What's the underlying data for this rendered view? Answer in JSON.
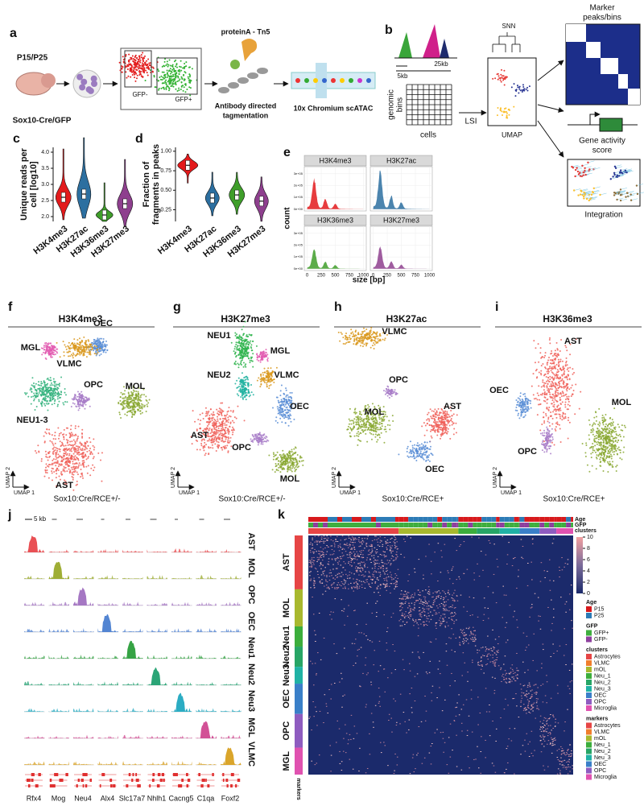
{
  "a": {
    "label": "a",
    "age": "P15/P25",
    "mouse": "Sox10-Cre/GFP",
    "gate_neg": "GFP-",
    "gate_pos": "GFP+",
    "enzyme": "proteinA - Tn5",
    "step_line1": "Antibody directed",
    "step_line2": "tagmentation",
    "platform": "10x Chromium scATAC"
  },
  "b": {
    "label": "b",
    "bin_small": "5kb",
    "bin_large": "25kb",
    "matrix_rows": [
      "genomic",
      "bins"
    ],
    "matrix_cols": "cells",
    "method": "LSI",
    "graph": "SNN",
    "embedding": "UMAP",
    "output1": [
      "Marker",
      "peaks/bins"
    ],
    "output2": [
      "Gene activity",
      "score"
    ],
    "output3": "Integration"
  },
  "c": {
    "label": "c",
    "ylabel": [
      "Unique reads per",
      "cell [log10]"
    ],
    "categories": [
      "H3K4me3",
      "H3K27ac",
      "H3K36me3",
      "H3K27me3"
    ],
    "colors": [
      "#e31a1c",
      "#2c6fa0",
      "#3f9e2a",
      "#8e3f8e"
    ],
    "medians": [
      2.6,
      2.7,
      2.05,
      2.4
    ],
    "ylim": [
      1.85,
      4.15
    ],
    "yticks": [
      {
        "value": 2,
        "label": "2.0"
      },
      2.5,
      {
        "value": 3,
        "label": "3.0"
      },
      3.5,
      {
        "value": 4,
        "label": "4.0"
      }
    ]
  },
  "d": {
    "label": "d",
    "ylabel": [
      "Fraction of",
      "fragments in peaks"
    ],
    "categories": [
      "H3K4me3",
      "H3K27ac",
      "H3K36me3",
      "H3K27me3"
    ],
    "colors": [
      "#e31a1c",
      "#2c6fa0",
      "#3f9e2a",
      "#8e3f8e"
    ],
    "medians": [
      0.82,
      0.4,
      0.44,
      0.36
    ],
    "ylim": [
      0.1,
      1.05
    ],
    "yticks": [
      0.25,
      {
        "value": 0.5,
        "label": "0.50"
      },
      0.75,
      {
        "value": 1,
        "label": "1.00"
      }
    ]
  },
  "e": {
    "label": "e",
    "facets": [
      "H3K4me3",
      "H3K27ac",
      "H3K36me3",
      "H3K27me3"
    ],
    "colors": [
      "#e31a1c",
      "#2c6fa0",
      "#3f9e2a",
      "#8e3f8e"
    ],
    "xlabel": "size [bp]",
    "ylabel": "count",
    "xlim": [
      -50,
      1050
    ],
    "xticks": [
      0,
      250,
      500,
      750,
      1000
    ],
    "ylim": [
      -15000,
      360000
    ],
    "yticks": [
      {
        "value": 0,
        "label": "0e+00"
      },
      {
        "value": 100000,
        "label": "1e+05"
      },
      {
        "value": 200000,
        "label": "2e+05"
      },
      {
        "value": 300000,
        "label": "3e+05"
      }
    ]
  },
  "umap_axes": [
    "UMAP 1",
    "UMAP 2"
  ],
  "umaps": [
    {
      "label": "f",
      "title": "H3K4me3",
      "genotype": "Sox10:Cre/RCE+/-",
      "clusters": [
        {
          "name": "MGL",
          "color": "#e25ab0"
        },
        {
          "name": "OEC",
          "color": "#5b8ed6"
        },
        {
          "name": "VLMC",
          "color": "#d9981c"
        },
        {
          "name": "OPC",
          "color": "#a87cc8"
        },
        {
          "name": "MOL",
          "color": "#8aa832"
        },
        {
          "name": "NEU1-3",
          "color": "#2fb07a"
        },
        {
          "name": "AST",
          "color": "#f0625a"
        }
      ]
    },
    {
      "label": "g",
      "title": "H3K27me3",
      "genotype": "Sox10:Cre/RCE+/-",
      "clusters": [
        {
          "name": "NEU1",
          "color": "#2bb34a"
        },
        {
          "name": "MGL",
          "color": "#e25ab0"
        },
        {
          "name": "NEU2",
          "color": "#20b2a0"
        },
        {
          "name": "VLMC",
          "color": "#d9981c"
        },
        {
          "name": "OEC",
          "color": "#5b8ed6"
        },
        {
          "name": "AST",
          "color": "#f0625a"
        },
        {
          "name": "OPC",
          "color": "#a87cc8"
        },
        {
          "name": "MOL",
          "color": "#8aa832"
        }
      ]
    },
    {
      "label": "h",
      "title": "H3K27ac",
      "genotype": "Sox10:Cre/RCE+",
      "clusters": [
        {
          "name": "VLMC",
          "color": "#d9981c"
        },
        {
          "name": "OPC",
          "color": "#a87cc8"
        },
        {
          "name": "MOL",
          "color": "#8aa832"
        },
        {
          "name": "AST",
          "color": "#f0625a"
        },
        {
          "name": "OEC",
          "color": "#5b8ed6"
        }
      ]
    },
    {
      "label": "i",
      "title": "H3K36me3",
      "genotype": "Sox10:Cre/RCE+",
      "clusters": [
        {
          "name": "AST",
          "color": "#f0625a"
        },
        {
          "name": "OEC",
          "color": "#5b8ed6"
        },
        {
          "name": "OPC",
          "color": "#a87cc8"
        },
        {
          "name": "MOL",
          "color": "#8aa832"
        }
      ]
    }
  ],
  "j": {
    "label": "j",
    "scale": "5 kb",
    "rows": [
      "AST",
      "MOL",
      "OPC",
      "OEC",
      "Neu1",
      "Neu2",
      "Neu3",
      "MGL",
      "VLMC"
    ],
    "colors": [
      "#e8474b",
      "#9aaa2a",
      "#a070c0",
      "#4a7ed0",
      "#2a9e3a",
      "#20a070",
      "#20a8c0",
      "#d04890",
      "#d8a020"
    ],
    "genes": [
      "Rfx4",
      "Mog",
      "Neu4",
      "Alx4",
      "Slc17a7",
      "Nhlh1",
      "Cacng5",
      "C1qa",
      "Foxf2"
    ]
  },
  "k": {
    "label": "k",
    "rows": [
      "AST",
      "MOL",
      "Neu1",
      "Neu2",
      "Neu3",
      "OEC",
      "OPC",
      "MGL"
    ],
    "annotations": [
      "Age",
      "GFP",
      "clusters"
    ],
    "markers_label": "markers",
    "colorbar": {
      "ylim": [
        0,
        10
      ],
      "ticks": [
        0,
        2,
        4,
        6,
        8,
        10
      ]
    },
    "legend": [
      {
        "title": "Age",
        "items": [
          {
            "name": "P15",
            "color": "#d7191c"
          },
          {
            "name": "P25",
            "color": "#2c7bb6"
          }
        ]
      },
      {
        "title": "GFP",
        "items": [
          {
            "name": "GFP+",
            "color": "#3fae3f"
          },
          {
            "name": "GFP-",
            "color": "#8e3f9e"
          }
        ]
      },
      {
        "title": "clusters",
        "items": [
          {
            "name": "Astrocytes",
            "color": "#e64545"
          },
          {
            "name": "VLMC",
            "color": "#f07e2c"
          },
          {
            "name": "mOL",
            "color": "#a8b82e"
          },
          {
            "name": "Neu_1",
            "color": "#3cae3c"
          },
          {
            "name": "Neu_2",
            "color": "#27a566"
          },
          {
            "name": "Neu_3",
            "color": "#20b2a5"
          },
          {
            "name": "OEC",
            "color": "#3a7fc8"
          },
          {
            "name": "OPC",
            "color": "#8e5cc0"
          },
          {
            "name": "Microglia",
            "color": "#e052b0"
          }
        ]
      },
      {
        "title": "markers",
        "items": [
          {
            "name": "Astrocytes",
            "color": "#e64545"
          },
          {
            "name": "VLMC",
            "color": "#f07e2c"
          },
          {
            "name": "mOL",
            "color": "#a8b82e"
          },
          {
            "name": "Neu_1",
            "color": "#3cae3c"
          },
          {
            "name": "Neu_2",
            "color": "#27a566"
          },
          {
            "name": "Neu_3",
            "color": "#20b2a5"
          },
          {
            "name": "OEC",
            "color": "#3a7fc8"
          },
          {
            "name": "OPC",
            "color": "#8e5cc0"
          },
          {
            "name": "Microglia",
            "color": "#e052b0"
          }
        ]
      }
    ]
  }
}
